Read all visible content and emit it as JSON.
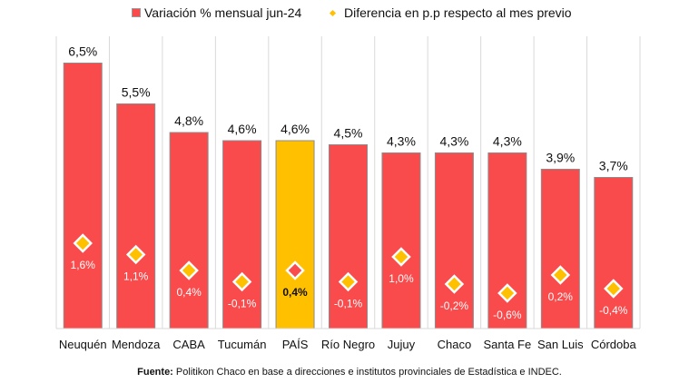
{
  "chart_data": {
    "type": "bar",
    "title": "",
    "xlabel": "",
    "ylabel": "",
    "categories": [
      "Neuquén",
      "Mendoza",
      "CABA",
      "Tucumán",
      "PAÍS",
      "Río Negro",
      "Jujuy",
      "Chaco",
      "Santa Fe",
      "San Luis",
      "Córdoba"
    ],
    "highlight_category": "PAÍS",
    "series": [
      {
        "name": "Variación % mensual jun-24",
        "type": "bar",
        "values": [
          6.5,
          5.5,
          4.8,
          4.6,
          4.6,
          4.5,
          4.3,
          4.3,
          4.3,
          3.9,
          3.7
        ],
        "labels": [
          "6,5%",
          "5,5%",
          "4,8%",
          "4,6%",
          "4,6%",
          "4,5%",
          "4,3%",
          "4,3%",
          "4,3%",
          "3,9%",
          "3,7%"
        ],
        "color": "#f94a4c",
        "highlight_color": "#ffc000"
      },
      {
        "name": "Diferencia en p.p respecto al mes previo",
        "type": "scatter",
        "marker": "diamond",
        "values": [
          1.6,
          1.1,
          0.4,
          -0.1,
          0.4,
          -0.1,
          1.0,
          -0.2,
          -0.6,
          0.2,
          -0.4
        ],
        "labels": [
          "1,6%",
          "1,1%",
          "0,4%",
          "-0,1%",
          "0,4%",
          "-0,1%",
          "1,0%",
          "-0,2%",
          "-0,6%",
          "0,2%",
          "-0,4%"
        ],
        "color": "#ffc000",
        "highlight_color": "#f94a4c"
      }
    ],
    "ylim": [
      0,
      6.5
    ],
    "y2lim": [
      -0.6,
      1.6
    ],
    "grid": false,
    "category_separators": true,
    "legend": "top"
  },
  "legend": {
    "items": [
      {
        "label": "Variación % mensual jun-24",
        "symbol": "square"
      },
      {
        "label": "Diferencia en p.p respecto al mes previo",
        "symbol": "diamond"
      }
    ]
  },
  "source": {
    "prefix": "Fuente:",
    "text": " Politikon Chaco en base a direcciones e institutos provinciales de Estadística e INDEC."
  }
}
